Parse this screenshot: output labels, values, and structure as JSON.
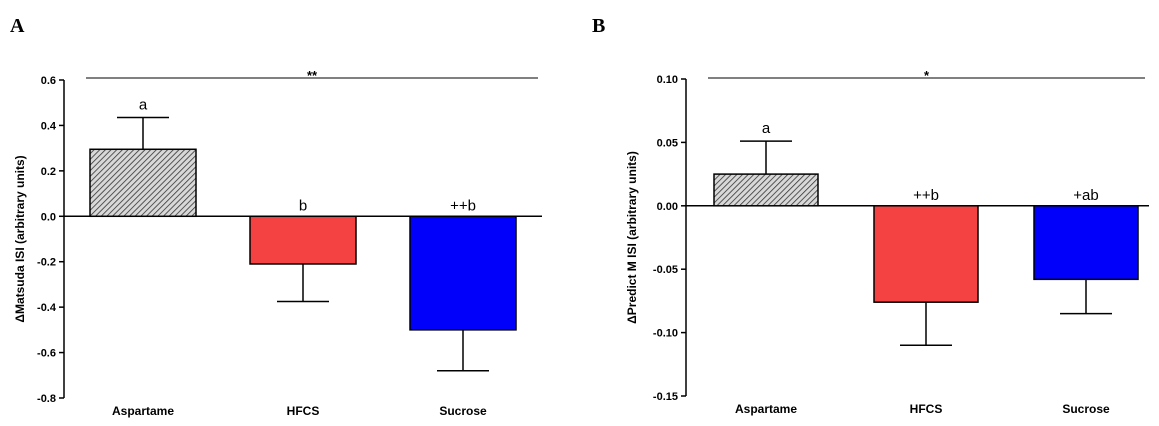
{
  "chart_data": [
    {
      "panel": "A",
      "type": "bar",
      "categories": [
        "Aspartame",
        "HFCS",
        "Sucrose"
      ],
      "values": [
        0.295,
        -0.21,
        -0.5
      ],
      "errors": [
        0.14,
        0.165,
        0.18
      ],
      "annotations": [
        "a",
        "b",
        "++b"
      ],
      "significance": "**",
      "ylabel": "ΔMatsuda ISI (arbitrary units)",
      "ylim": [
        -0.8,
        0.6
      ],
      "yticks": [
        0.6,
        0.4,
        0.2,
        0.0,
        -0.2,
        -0.4,
        -0.6,
        -0.8
      ],
      "ytick_labels": [
        "0.6",
        "0.4",
        "0.2",
        "0.0",
        "-0.2",
        "-0.4",
        "-0.6",
        "-0.8"
      ],
      "colors": [
        "#cccccc",
        "#f44242",
        "#0000fb"
      ],
      "fills": [
        "hatch",
        "solid",
        "solid"
      ],
      "grid": false
    },
    {
      "panel": "B",
      "type": "bar",
      "categories": [
        "Aspartame",
        "HFCS",
        "Sucrose"
      ],
      "values": [
        0.025,
        -0.076,
        -0.058
      ],
      "errors": [
        0.026,
        0.034,
        0.027
      ],
      "annotations": [
        "a",
        "++b",
        "+ab"
      ],
      "significance": "*",
      "ylabel": "ΔPredict M ISI (arbitrary units)",
      "ylim": [
        -0.15,
        0.1
      ],
      "yticks": [
        0.1,
        0.05,
        0.0,
        -0.05,
        -0.1,
        -0.15
      ],
      "ytick_labels": [
        "0.10",
        "0.05",
        "0.00",
        "-0.05",
        "-0.10",
        "-0.15"
      ],
      "colors": [
        "#cccccc",
        "#f44242",
        "#0000fb"
      ],
      "fills": [
        "hatch",
        "solid",
        "solid"
      ],
      "grid": false
    }
  ]
}
